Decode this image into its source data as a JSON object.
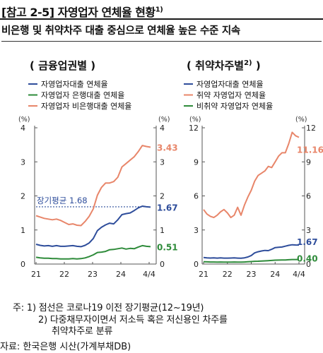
{
  "header": {
    "title": "[참고 2-5] 자영업자 연체율 현황",
    "title_sup": "1)",
    "subtitle": "비은행 및 취약차주 대출 중심으로 연체율 높은 수준 지속"
  },
  "chart_data": [
    {
      "type": "line",
      "title": "( 금융업권별 )",
      "unit_left": "(%)",
      "unit_right": "(%)",
      "ylim": [
        0,
        4
      ],
      "yticks": [
        0,
        1,
        2,
        3,
        4
      ],
      "xticks": [
        "21",
        "22",
        "23",
        "24",
        "4/4"
      ],
      "grid": false,
      "legend_placement": "top-left",
      "series": [
        {
          "name": "자영업자대출 연체율",
          "color": "#2e4d9b",
          "values": [
            0.58,
            0.55,
            0.53,
            0.54,
            0.52,
            0.54,
            0.52,
            0.52,
            0.53,
            0.54,
            0.52,
            0.51,
            0.55,
            0.62,
            0.75,
            0.98,
            1.08,
            1.15,
            1.2,
            1.18,
            1.3,
            1.45,
            1.48,
            1.5,
            1.57,
            1.65,
            1.7,
            1.68,
            1.67
          ]
        },
        {
          "name": "자영업자 은행대출 연체율",
          "color": "#2e8b3a",
          "values": [
            0.2,
            0.18,
            0.17,
            0.17,
            0.16,
            0.16,
            0.15,
            0.15,
            0.15,
            0.16,
            0.15,
            0.16,
            0.18,
            0.22,
            0.27,
            0.34,
            0.35,
            0.37,
            0.42,
            0.43,
            0.45,
            0.47,
            0.44,
            0.46,
            0.45,
            0.5,
            0.54,
            0.52,
            0.51
          ]
        },
        {
          "name": "자영업자 비은행대출 연체율",
          "color": "#e8866a",
          "values": [
            1.42,
            1.38,
            1.34,
            1.32,
            1.3,
            1.32,
            1.28,
            1.22,
            1.16,
            1.18,
            1.14,
            1.13,
            1.25,
            1.4,
            1.62,
            2.02,
            2.25,
            2.38,
            2.38,
            2.42,
            2.55,
            2.85,
            2.95,
            3.05,
            3.15,
            3.3,
            3.48,
            3.45,
            3.43
          ]
        }
      ],
      "reference_line": {
        "label": "장기평균 1.68",
        "value": 1.68
      },
      "end_labels": [
        {
          "text": "3.43",
          "value": 3.43,
          "color": "#e8866a"
        },
        {
          "text": "1.67",
          "value": 1.67,
          "color": "#2e4d9b"
        },
        {
          "text": "0.51",
          "value": 0.51,
          "color": "#2e8b3a"
        }
      ]
    },
    {
      "type": "line",
      "title": "( 취약차주별",
      "title_sup": "2)",
      "title_close": " )",
      "unit_left": "(%)",
      "unit_right": "(%)",
      "ylim": [
        0,
        12
      ],
      "yticks": [
        0,
        3,
        6,
        9,
        12
      ],
      "xticks": [
        "21",
        "22",
        "23",
        "24",
        "4/4"
      ],
      "grid": false,
      "legend_placement": "top-left",
      "series": [
        {
          "name": "자영업자대출 연체율",
          "color": "#2e4d9b",
          "values": [
            0.58,
            0.55,
            0.53,
            0.54,
            0.52,
            0.54,
            0.52,
            0.52,
            0.53,
            0.54,
            0.52,
            0.51,
            0.55,
            0.62,
            0.75,
            0.98,
            1.08,
            1.15,
            1.2,
            1.18,
            1.3,
            1.45,
            1.48,
            1.5,
            1.57,
            1.65,
            1.7,
            1.68,
            1.67
          ]
        },
        {
          "name": "취약 자영업자 연체율",
          "color": "#e8866a",
          "values": [
            4.8,
            4.4,
            4.2,
            4.1,
            4.3,
            4.6,
            4.8,
            4.5,
            4.1,
            4.3,
            5.0,
            4.3,
            5.2,
            5.9,
            6.5,
            7.3,
            7.8,
            8.0,
            8.2,
            8.6,
            8.5,
            9.0,
            9.5,
            9.8,
            9.8,
            10.6,
            11.6,
            11.3,
            11.16
          ]
        },
        {
          "name": "비취약 자영업자 연체율",
          "color": "#2e8b3a",
          "values": [
            0.2,
            0.19,
            0.18,
            0.18,
            0.17,
            0.18,
            0.17,
            0.17,
            0.17,
            0.18,
            0.17,
            0.17,
            0.18,
            0.2,
            0.22,
            0.24,
            0.25,
            0.27,
            0.28,
            0.3,
            0.32,
            0.34,
            0.35,
            0.36,
            0.36,
            0.38,
            0.4,
            0.4,
            0.4
          ]
        }
      ],
      "end_labels": [
        {
          "text": "11.16",
          "value": 11.16,
          "color": "#e8866a"
        },
        {
          "text": "1.67",
          "value": 1.67,
          "color": "#2e4d9b"
        },
        {
          "text": "0.40",
          "value": 0.4,
          "color": "#2e8b3a"
        }
      ]
    }
  ],
  "notes": {
    "line1": "주: 1) 점선은 코로나19 이전 장기평균(12~19년)",
    "line2": "2) 다중채무자이면서 저소득 혹은 저신용인 차주를",
    "line3": "취약차주로 분류"
  },
  "source": "자료: 한국은행 시산(가계부채DB)"
}
